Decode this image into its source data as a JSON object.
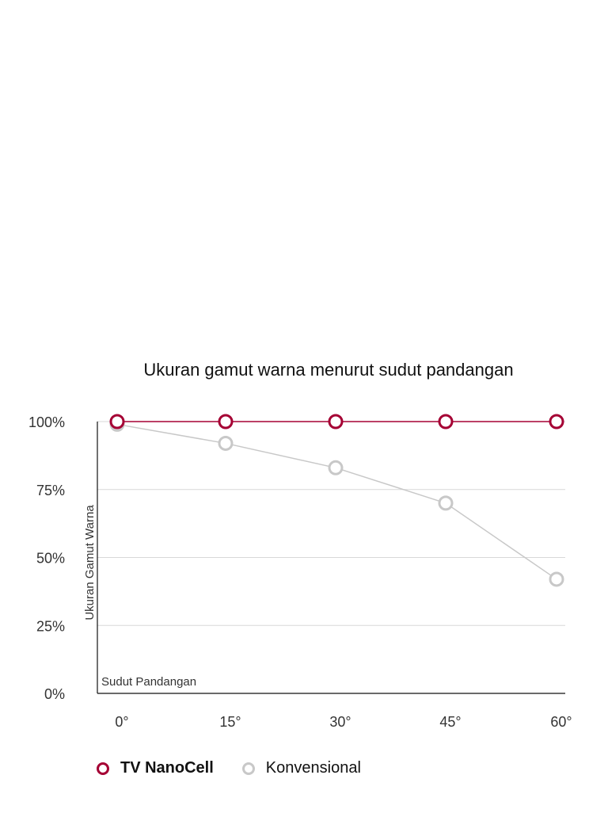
{
  "chart_data": {
    "type": "line",
    "title": "Ukuran gamut warna menurut sudut pandangan",
    "xlabel": "Sudut Pandangan",
    "ylabel": "Ukuran Gamut Warna",
    "categories": [
      "0°",
      "15°",
      "30°",
      "45°",
      "60°"
    ],
    "y_ticks": [
      "0%",
      "25%",
      "50%",
      "75%",
      "100%"
    ],
    "ylim": [
      0,
      100
    ],
    "grid": true,
    "legend_position": "bottom-left",
    "series": [
      {
        "name": "TV NanoCell",
        "color": "#A50034",
        "values": [
          100,
          100,
          100,
          100,
          100
        ]
      },
      {
        "name": "Konvensional",
        "color": "#C8C8C8",
        "values": [
          99,
          92,
          83,
          70,
          42
        ]
      }
    ]
  }
}
